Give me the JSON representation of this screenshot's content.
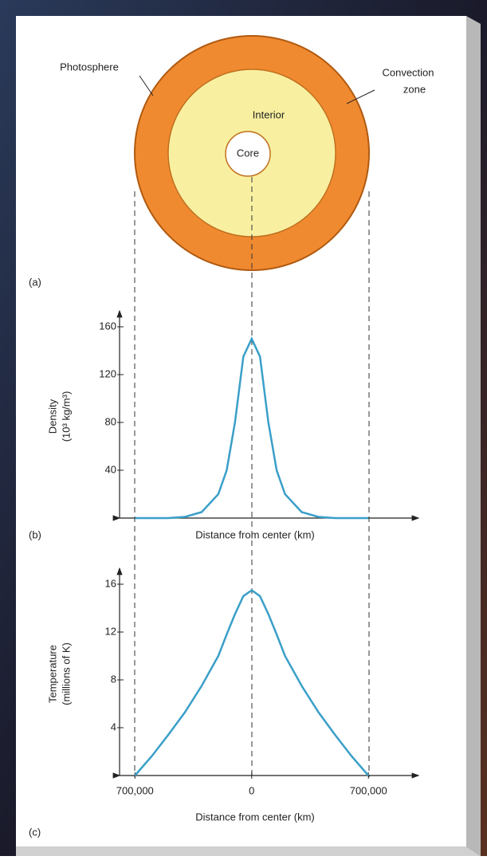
{
  "diagram": {
    "labels": {
      "photosphere": "Photosphere",
      "convection": [
        "Convection",
        "zone"
      ],
      "interior": "Interior",
      "core": "Core"
    },
    "panels": [
      "(a)",
      "(b)",
      "(c)"
    ]
  },
  "chart_data": [
    {
      "type": "line",
      "ylabel": [
        "Density",
        "(10³ kg/m³)"
      ],
      "xlabel": "Distance from center (km)",
      "x": [
        -700000,
        -600000,
        -500000,
        -400000,
        -300000,
        -200000,
        -150000,
        -100000,
        -50000,
        0,
        50000,
        100000,
        150000,
        200000,
        300000,
        400000,
        500000,
        600000,
        700000
      ],
      "values": [
        0,
        0,
        0,
        1,
        5,
        20,
        40,
        80,
        135,
        150,
        135,
        80,
        40,
        20,
        5,
        1,
        0,
        0,
        0
      ],
      "color": "#3a9fc8",
      "xlim": [
        -840000,
        1000000
      ],
      "ylim": [
        0,
        170
      ],
      "yticks": [
        40,
        80,
        120,
        160
      ]
    },
    {
      "type": "line",
      "ylabel": [
        "Temperature",
        "(millions of K)"
      ],
      "xlabel": "Distance from center (km)",
      "x": [
        -700000,
        -600000,
        -500000,
        -400000,
        -300000,
        -200000,
        -150000,
        -100000,
        -50000,
        0,
        50000,
        100000,
        150000,
        200000,
        300000,
        400000,
        500000,
        600000,
        700000
      ],
      "values": [
        0,
        1.6,
        3.4,
        5.3,
        7.5,
        10,
        11.8,
        13.5,
        15,
        15.5,
        15,
        13.5,
        11.8,
        10,
        7.5,
        5.3,
        3.4,
        1.6,
        0
      ],
      "color": "#3a9fc8",
      "xlim": [
        -840000,
        1000000
      ],
      "ylim": [
        0,
        17
      ],
      "yticks": [
        4,
        8,
        12,
        16
      ],
      "xticks": [
        {
          "value": -700000,
          "label": "700,000"
        },
        0,
        {
          "value": 700000,
          "label": "700,000"
        }
      ]
    }
  ]
}
